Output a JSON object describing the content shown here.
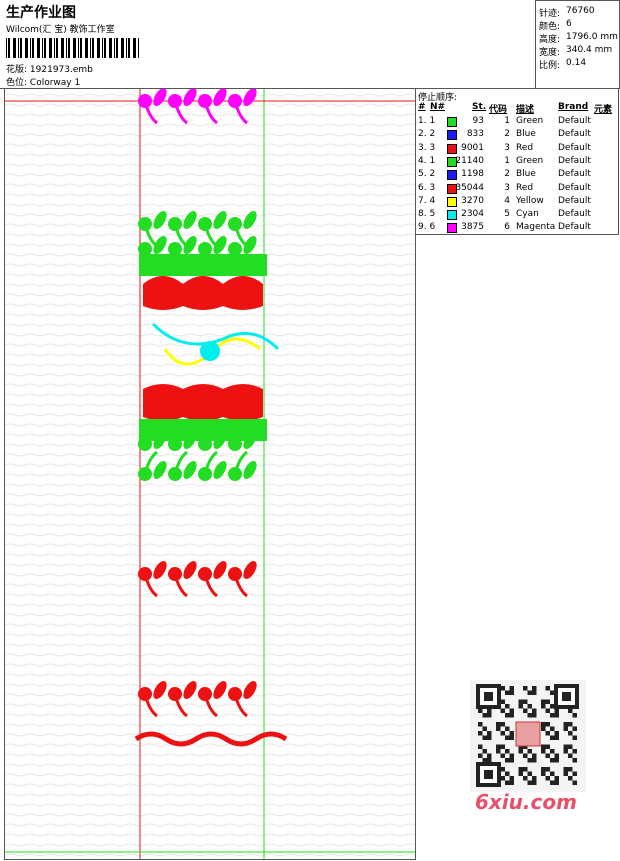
{
  "header": {
    "title": "生产作业图",
    "subtitle": "Wilcom(汇 宝) 教饰工作室",
    "design_label": "花版:",
    "design": "1921973.emb",
    "colorway_label": "色位:",
    "colorway": "Colorway 1"
  },
  "info": [
    {
      "label": "针迹:",
      "value": "76760"
    },
    {
      "label": "颜色:",
      "value": "6"
    },
    {
      "label": "高度:",
      "value": "1796.0 mm"
    },
    {
      "label": "宽度:",
      "value": "340.4 mm"
    },
    {
      "label": "比例:",
      "value": "0.14"
    }
  ],
  "table": {
    "title": "停止顺序:",
    "columns": [
      "#",
      "N#",
      "St.",
      "代码",
      "描述",
      "Brand",
      "元素"
    ],
    "rows": [
      {
        "no": "1. 1",
        "color": "#22dd22",
        "st": 93,
        "code": 1,
        "desc": "Green",
        "brand": "Default"
      },
      {
        "no": "2. 2",
        "color": "#1a1aff",
        "st": 833,
        "code": 2,
        "desc": "Blue",
        "brand": "Default"
      },
      {
        "no": "3. 3",
        "color": "#ee1111",
        "st": 9001,
        "code": 3,
        "desc": "Red",
        "brand": "Default"
      },
      {
        "no": "4. 1",
        "color": "#22dd22",
        "st": 21140,
        "code": 1,
        "desc": "Green",
        "brand": "Default"
      },
      {
        "no": "5. 2",
        "color": "#1a1aff",
        "st": 1198,
        "code": 2,
        "desc": "Blue",
        "brand": "Default"
      },
      {
        "no": "6. 3",
        "color": "#ee1111",
        "st": 35044,
        "code": 3,
        "desc": "Red",
        "brand": "Default"
      },
      {
        "no": "7. 4",
        "color": "#ffff00",
        "st": 3270,
        "code": 4,
        "desc": "Yellow",
        "brand": "Default"
      },
      {
        "no": "8. 5",
        "color": "#00eeee",
        "st": 2304,
        "code": 5,
        "desc": "Cyan",
        "brand": "Default"
      },
      {
        "no": "9. 6",
        "color": "#ff00ff",
        "st": 3875,
        "code": 6,
        "desc": "Magenta",
        "brand": "Default"
      }
    ]
  },
  "watermark": "6xiu.com"
}
